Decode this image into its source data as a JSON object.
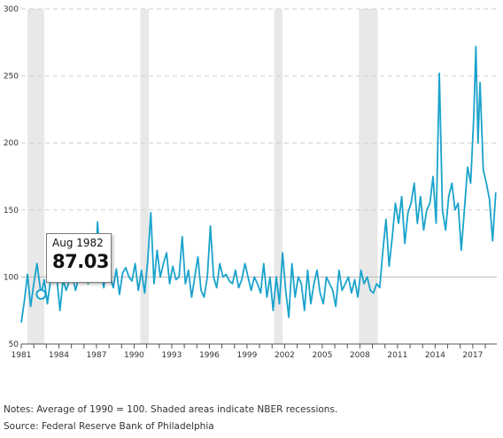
{
  "chart_data": {
    "type": "line",
    "title": "",
    "xlabel": "",
    "ylabel": "",
    "ylim": [
      50,
      300
    ],
    "xlim": [
      "1981-01",
      "2018-12"
    ],
    "y_ticks": [
      "50",
      "100",
      "150",
      "200",
      "250",
      "300"
    ],
    "x_ticks": [
      "1981",
      "1984",
      "1987",
      "1990",
      "1993",
      "1996",
      "1999",
      "2002",
      "2005",
      "2008",
      "2011",
      "2014",
      "2017"
    ],
    "grid": "horizontal dashed",
    "reference_line": 100,
    "recessions": [
      {
        "start": "1981-07",
        "end": "1982-11"
      },
      {
        "start": "1990-07",
        "end": "1991-03"
      },
      {
        "start": "2001-03",
        "end": "2001-11"
      },
      {
        "start": "2007-12",
        "end": "2009-06"
      }
    ],
    "series_color": "#1aa3cc",
    "x": [
      "1981-01",
      "1981-04",
      "1981-07",
      "1981-10",
      "1982-01",
      "1982-04",
      "1982-08",
      "1982-11",
      "1983-02",
      "1983-05",
      "1983-08",
      "1983-11",
      "1984-02",
      "1984-05",
      "1984-08",
      "1984-11",
      "1985-02",
      "1985-05",
      "1985-08",
      "1985-11",
      "1986-02",
      "1986-05",
      "1986-08",
      "1986-11",
      "1987-02",
      "1987-05",
      "1987-08",
      "1987-11",
      "1988-02",
      "1988-05",
      "1988-08",
      "1988-11",
      "1989-02",
      "1989-05",
      "1989-08",
      "1989-11",
      "1990-02",
      "1990-05",
      "1990-08",
      "1990-11",
      "1991-02",
      "1991-05",
      "1991-08",
      "1991-11",
      "1992-02",
      "1992-05",
      "1992-08",
      "1992-11",
      "1993-02",
      "1993-05",
      "1993-08",
      "1993-11",
      "1994-02",
      "1994-05",
      "1994-08",
      "1994-11",
      "1995-02",
      "1995-05",
      "1995-08",
      "1995-11",
      "1996-02",
      "1996-05",
      "1996-08",
      "1996-11",
      "1997-02",
      "1997-05",
      "1997-08",
      "1997-11",
      "1998-02",
      "1998-05",
      "1998-08",
      "1998-11",
      "1999-02",
      "1999-05",
      "1999-08",
      "1999-11",
      "2000-02",
      "2000-05",
      "2000-08",
      "2000-11",
      "2001-02",
      "2001-05",
      "2001-08",
      "2001-11",
      "2002-02",
      "2002-05",
      "2002-08",
      "2002-11",
      "2003-02",
      "2003-05",
      "2003-08",
      "2003-11",
      "2004-02",
      "2004-05",
      "2004-08",
      "2004-11",
      "2005-02",
      "2005-05",
      "2005-08",
      "2005-11",
      "2006-02",
      "2006-05",
      "2006-08",
      "2006-11",
      "2007-02",
      "2007-05",
      "2007-08",
      "2007-11",
      "2008-02",
      "2008-05",
      "2008-08",
      "2008-11",
      "2009-02",
      "2009-05",
      "2009-08",
      "2009-11",
      "2010-02",
      "2010-05",
      "2010-08",
      "2010-11",
      "2011-02",
      "2011-05",
      "2011-08",
      "2011-11",
      "2012-02",
      "2012-05",
      "2012-08",
      "2012-11",
      "2013-02",
      "2013-05",
      "2013-08",
      "2013-11",
      "2014-02",
      "2014-05",
      "2014-08",
      "2014-11",
      "2015-02",
      "2015-05",
      "2015-08",
      "2015-11",
      "2016-02",
      "2016-05",
      "2016-08",
      "2016-11",
      "2017-02",
      "2017-04",
      "2017-06",
      "2017-08",
      "2017-11",
      "2018-02",
      "2018-05",
      "2018-08",
      "2018-11"
    ],
    "series": [
      {
        "values": [
          66,
          82,
          102,
          78,
          95,
          110,
          87.03,
          98,
          80,
          97,
          96,
          100,
          75,
          98,
          90,
          97,
          100,
          90,
          100,
          100,
          110,
          95,
          115,
          100,
          141,
          105,
          92,
          110,
          100,
          92,
          106,
          87,
          103,
          107,
          100,
          97,
          110,
          90,
          105,
          88,
          112,
          148,
          95,
          120,
          100,
          110,
          118,
          95,
          108,
          98,
          100,
          130,
          95,
          105,
          85,
          100,
          115,
          90,
          85,
          100,
          138,
          100,
          92,
          110,
          100,
          102,
          97,
          95,
          105,
          92,
          98,
          110,
          100,
          90,
          100,
          95,
          88,
          110,
          85,
          100,
          75,
          100,
          80,
          118,
          90,
          70,
          110,
          85,
          100,
          95,
          75,
          105,
          80,
          95,
          105,
          88,
          80,
          100,
          95,
          90,
          78,
          105,
          90,
          95,
          100,
          88,
          98,
          85,
          105,
          95,
          100,
          90,
          88,
          95,
          92,
          120,
          143,
          108,
          130,
          155,
          140,
          160,
          125,
          148,
          155,
          170,
          140,
          160,
          135,
          150,
          155,
          175,
          140,
          252,
          150,
          135,
          160,
          170,
          150,
          155,
          120,
          150,
          182,
          170,
          220,
          272,
          200,
          245,
          180,
          170,
          158,
          127,
          163
        ]
      }
    ]
  },
  "tooltip": {
    "label": "Aug 1982",
    "value": "87.03"
  },
  "notes": "Notes: Average of 1990 = 100. Shaded areas indicate NBER recessions.",
  "source": "Source: Federal Reserve Bank of Philadelphia"
}
